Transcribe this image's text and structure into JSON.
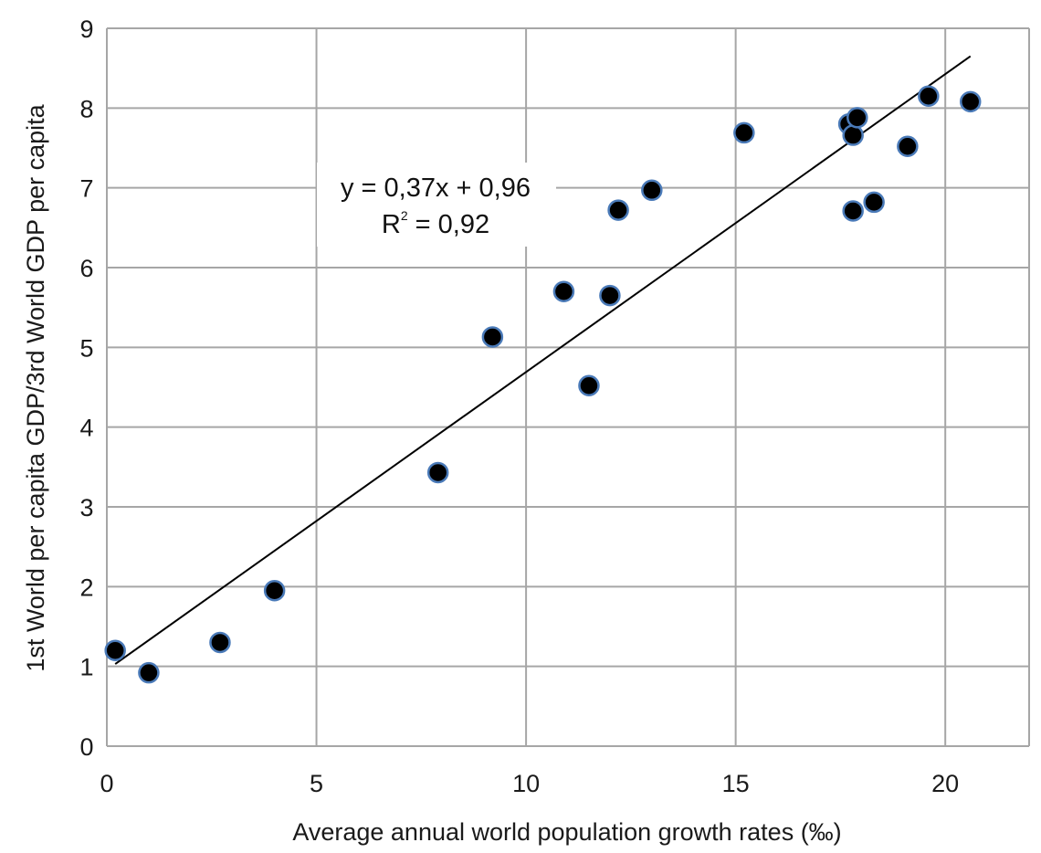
{
  "chart_data": {
    "type": "scatter",
    "xlabel": "Average annual world population growth rates (‰)",
    "ylabel": "1st World per capita GDP/3rd World GDP per capita",
    "xlim": [
      0,
      22
    ],
    "ylim": [
      0,
      9
    ],
    "xticks": [
      "0",
      "5",
      "10",
      "15",
      "20"
    ],
    "yticks": [
      "0",
      "1",
      "2",
      "3",
      "4",
      "5",
      "6",
      "7",
      "8",
      "9"
    ],
    "grid": true,
    "series": [
      {
        "points": [
          {
            "x": 0.2,
            "y": 1.2
          },
          {
            "x": 1.0,
            "y": 0.92
          },
          {
            "x": 2.7,
            "y": 1.3
          },
          {
            "x": 4.0,
            "y": 1.95
          },
          {
            "x": 7.9,
            "y": 3.43
          },
          {
            "x": 9.2,
            "y": 5.13
          },
          {
            "x": 10.9,
            "y": 5.7
          },
          {
            "x": 11.5,
            "y": 4.52
          },
          {
            "x": 12.0,
            "y": 5.65
          },
          {
            "x": 12.2,
            "y": 6.72
          },
          {
            "x": 13.0,
            "y": 6.97
          },
          {
            "x": 15.2,
            "y": 7.69
          },
          {
            "x": 17.7,
            "y": 7.8
          },
          {
            "x": 17.8,
            "y": 7.66
          },
          {
            "x": 17.8,
            "y": 6.71
          },
          {
            "x": 17.9,
            "y": 7.88
          },
          {
            "x": 18.3,
            "y": 6.82
          },
          {
            "x": 19.1,
            "y": 7.52
          },
          {
            "x": 19.6,
            "y": 8.15
          },
          {
            "x": 20.6,
            "y": 8.08
          }
        ]
      }
    ],
    "trendline": {
      "type": "linear",
      "x_range": [
        0.2,
        20.6
      ],
      "y_range": [
        1.03,
        8.65
      ],
      "equation": "y = 0,37x + 0,96",
      "r2_label": "R",
      "r2_superscript": "2",
      "r2_value": "= 0,92"
    },
    "colors": {
      "marker_fill": "#000000",
      "marker_stroke": "#4a7ab8",
      "grid": "#a6a6a6",
      "trendline": "#000000"
    }
  }
}
